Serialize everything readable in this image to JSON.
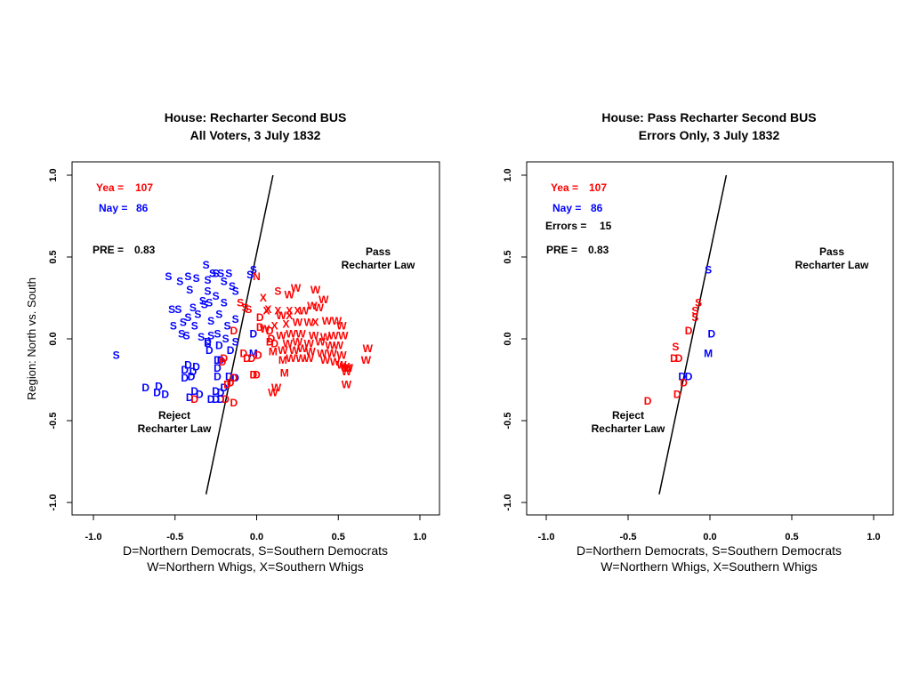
{
  "chart_data": [
    {
      "type": "scatter",
      "title": "House: Recharter Second BUS",
      "subtitle": "All Voters, 3 July 1832",
      "xlabel": "D=Northern Democrats, S=Southern Democrats",
      "xlabel2": "W=Northern Whigs, X=Southern Whigs",
      "ylabel": "Region: North vs. South",
      "xlim": [
        -1.0,
        1.0
      ],
      "ylim": [
        -1.0,
        1.0
      ],
      "xticks": [
        "-1.0",
        "-0.5",
        "0.0",
        "0.5",
        "1.0"
      ],
      "yticks": [
        "-1.0",
        "-0.5",
        "0.0",
        "0.5",
        "1.0"
      ],
      "yea_label": "Yea =",
      "yea_value": "107",
      "nay_label": "Nay =",
      "nay_value": "86",
      "pre_label": "PRE =",
      "pre_value": "0.83",
      "pass_line1": "Pass",
      "pass_line2": "Recharter Law",
      "reject_line1": "Reject",
      "reject_line2": "Recharter Law",
      "cutting_line": [
        [
          -0.31,
          -0.95
        ],
        [
          0.1,
          1.0
        ]
      ],
      "colors": {
        "yea": "#ff0000",
        "nay": "#0000ff"
      },
      "series": [
        {
          "name": "Nay",
          "color": "#0000ff",
          "points": [
            [
              "S",
              -0.31,
              0.45
            ],
            [
              "S",
              -0.27,
              0.4
            ],
            [
              "S",
              -0.25,
              0.4
            ],
            [
              "S",
              -0.22,
              0.4
            ],
            [
              "S",
              -0.17,
              0.4
            ],
            [
              "S",
              -0.04,
              0.39
            ],
            [
              "S",
              -0.02,
              0.42
            ],
            [
              "S",
              -0.54,
              0.38
            ],
            [
              "S",
              -0.42,
              0.38
            ],
            [
              "S",
              -0.37,
              0.37
            ],
            [
              "S",
              -0.3,
              0.36
            ],
            [
              "S",
              -0.47,
              0.35
            ],
            [
              "S",
              -0.2,
              0.35
            ],
            [
              "S",
              -0.15,
              0.32
            ],
            [
              "S",
              -0.13,
              0.29
            ],
            [
              "S",
              -0.3,
              0.29
            ],
            [
              "S",
              -0.41,
              0.3
            ],
            [
              "S",
              -0.25,
              0.26
            ],
            [
              "S",
              -0.33,
              0.23
            ],
            [
              "S",
              -0.52,
              0.18
            ],
            [
              "S",
              -0.48,
              0.18
            ],
            [
              "S",
              -0.39,
              0.19
            ],
            [
              "S",
              -0.32,
              0.21
            ],
            [
              "S",
              -0.29,
              0.22
            ],
            [
              "S",
              -0.2,
              0.22
            ],
            [
              "S",
              -0.42,
              0.13
            ],
            [
              "S",
              -0.36,
              0.15
            ],
            [
              "S",
              -0.23,
              0.15
            ],
            [
              "S",
              -0.13,
              0.12
            ],
            [
              "S",
              -0.51,
              0.08
            ],
            [
              "S",
              -0.45,
              0.1
            ],
            [
              "S",
              -0.38,
              0.08
            ],
            [
              "S",
              -0.28,
              0.11
            ],
            [
              "S",
              -0.18,
              0.08
            ],
            [
              "S",
              -0.46,
              0.03
            ],
            [
              "S",
              -0.43,
              0.02
            ],
            [
              "S",
              -0.34,
              0.01
            ],
            [
              "S",
              -0.28,
              0.02
            ],
            [
              "S",
              -0.24,
              0.03
            ],
            [
              "S",
              -0.19,
              0.0
            ],
            [
              "S",
              -0.13,
              -0.02
            ],
            [
              "S",
              -0.3,
              -0.03
            ],
            [
              "S",
              -0.86,
              -0.1
            ],
            [
              "D",
              -0.3,
              -0.02
            ],
            [
              "D",
              -0.23,
              -0.04
            ],
            [
              "D",
              -0.29,
              -0.07
            ],
            [
              "D",
              -0.02,
              0.03
            ],
            [
              "D",
              -0.16,
              -0.07
            ],
            [
              "D",
              -0.42,
              -0.16
            ],
            [
              "D",
              -0.37,
              -0.17
            ],
            [
              "D",
              -0.24,
              -0.13
            ],
            [
              "D",
              -0.22,
              -0.13
            ],
            [
              "D",
              -0.44,
              -0.19
            ],
            [
              "D",
              -0.39,
              -0.2
            ],
            [
              "D",
              -0.24,
              -0.18
            ],
            [
              "D",
              -0.44,
              -0.24
            ],
            [
              "D",
              -0.4,
              -0.23
            ],
            [
              "D",
              -0.17,
              -0.23
            ],
            [
              "D",
              -0.24,
              -0.23
            ],
            [
              "D",
              -0.13,
              -0.24
            ],
            [
              "D",
              -0.68,
              -0.3
            ],
            [
              "D",
              -0.6,
              -0.29
            ],
            [
              "D",
              -0.61,
              -0.33
            ],
            [
              "D",
              -0.56,
              -0.34
            ],
            [
              "D",
              -0.38,
              -0.32
            ],
            [
              "D",
              -0.41,
              -0.36
            ],
            [
              "D",
              -0.35,
              -0.34
            ],
            [
              "D",
              -0.25,
              -0.32
            ],
            [
              "D",
              -0.22,
              -0.33
            ],
            [
              "D",
              -0.28,
              -0.37
            ],
            [
              "D",
              -0.25,
              -0.37
            ],
            [
              "D",
              -0.22,
              -0.37
            ],
            [
              "D",
              -0.2,
              -0.3
            ],
            [
              "M",
              -0.02,
              -0.09
            ]
          ]
        },
        {
          "name": "Yea",
          "color": "#ff0000",
          "points": [
            [
              "N",
              0.0,
              0.38
            ],
            [
              "X",
              0.04,
              0.25
            ],
            [
              "S",
              0.13,
              0.29
            ],
            [
              "W",
              0.2,
              0.27
            ],
            [
              "W",
              0.24,
              0.31
            ],
            [
              "W",
              0.36,
              0.3
            ],
            [
              "W",
              0.41,
              0.24
            ],
            [
              "S",
              -0.1,
              0.22
            ],
            [
              "S",
              -0.07,
              0.19
            ],
            [
              "S",
              -0.05,
              0.18
            ],
            [
              "X",
              0.07,
              0.18
            ],
            [
              "D",
              0.02,
              0.13
            ],
            [
              "X",
              0.06,
              0.17
            ],
            [
              "X",
              0.13,
              0.17
            ],
            [
              "X",
              0.2,
              0.17
            ],
            [
              "X",
              0.25,
              0.17
            ],
            [
              "W",
              0.15,
              0.14
            ],
            [
              "X",
              0.2,
              0.14
            ],
            [
              "W",
              0.29,
              0.17
            ],
            [
              "W",
              0.34,
              0.2
            ],
            [
              "W",
              0.38,
              0.19
            ],
            [
              "D",
              0.02,
              0.07
            ],
            [
              "W",
              0.05,
              0.06
            ],
            [
              "D",
              0.08,
              0.05
            ],
            [
              "X",
              0.11,
              0.08
            ],
            [
              "X",
              0.18,
              0.09
            ],
            [
              "W",
              0.25,
              0.1
            ],
            [
              "W",
              0.32,
              0.1
            ],
            [
              "X",
              0.36,
              0.1
            ],
            [
              "W",
              0.43,
              0.11
            ],
            [
              "W",
              0.49,
              0.11
            ],
            [
              "W",
              0.52,
              0.08
            ],
            [
              "D",
              -0.14,
              0.05
            ],
            [
              "D",
              0.09,
              0.0
            ],
            [
              "W",
              0.15,
              0.02
            ],
            [
              "W",
              0.21,
              0.03
            ],
            [
              "W",
              0.27,
              0.03
            ],
            [
              "W",
              0.35,
              0.02
            ],
            [
              "W",
              0.42,
              0.01
            ],
            [
              "W",
              0.47,
              0.02
            ],
            [
              "W",
              0.53,
              0.02
            ],
            [
              "D",
              0.08,
              -0.02
            ],
            [
              "D",
              0.11,
              -0.03
            ],
            [
              "W",
              0.19,
              -0.03
            ],
            [
              "W",
              0.25,
              -0.02
            ],
            [
              "W",
              0.32,
              -0.03
            ],
            [
              "W",
              0.39,
              -0.02
            ],
            [
              "W",
              0.45,
              -0.04
            ],
            [
              "W",
              0.5,
              -0.04
            ],
            [
              "W",
              0.68,
              -0.06
            ],
            [
              "D",
              -0.08,
              -0.09
            ],
            [
              "D",
              0.01,
              -0.1
            ],
            [
              "D",
              -0.06,
              -0.12
            ],
            [
              "D",
              -0.03,
              -0.12
            ],
            [
              "M",
              0.1,
              -0.08
            ],
            [
              "W",
              0.16,
              -0.07
            ],
            [
              "W",
              0.23,
              -0.07
            ],
            [
              "W",
              0.28,
              -0.06
            ],
            [
              "W",
              0.33,
              -0.08
            ],
            [
              "W",
              0.4,
              -0.09
            ],
            [
              "W",
              0.46,
              -0.09
            ],
            [
              "W",
              0.52,
              -0.1
            ],
            [
              "W",
              0.67,
              -0.13
            ],
            [
              "M",
              0.16,
              -0.13
            ],
            [
              "W",
              0.21,
              -0.12
            ],
            [
              "W",
              0.27,
              -0.12
            ],
            [
              "W",
              0.32,
              -0.12
            ],
            [
              "W",
              0.42,
              -0.13
            ],
            [
              "W",
              0.48,
              -0.14
            ],
            [
              "W",
              0.52,
              -0.16
            ],
            [
              "W",
              0.54,
              -0.17
            ],
            [
              "D",
              -0.2,
              -0.12
            ],
            [
              "D",
              -0.21,
              -0.14
            ],
            [
              "D",
              -0.02,
              -0.22
            ],
            [
              "D",
              0.0,
              -0.22
            ],
            [
              "M",
              0.17,
              -0.21
            ],
            [
              "W",
              0.55,
              -0.18
            ],
            [
              "W",
              0.55,
              -0.2
            ],
            [
              "W",
              0.56,
              -0.18
            ],
            [
              "D",
              -0.14,
              -0.24
            ],
            [
              "D",
              -0.16,
              -0.27
            ],
            [
              "D",
              -0.18,
              -0.28
            ],
            [
              "W",
              0.12,
              -0.3
            ],
            [
              "W",
              0.1,
              -0.33
            ],
            [
              "W",
              0.55,
              -0.28
            ],
            [
              "D",
              -0.19,
              -0.37
            ],
            [
              "D",
              -0.38,
              -0.37
            ],
            [
              "D",
              -0.14,
              -0.39
            ]
          ]
        }
      ]
    },
    {
      "type": "scatter",
      "title": "House: Pass Recharter Second BUS",
      "subtitle": "Errors Only, 3 July 1832",
      "xlabel": "D=Northern Democrats, S=Southern Democrats",
      "xlabel2": "W=Northern Whigs, X=Southern Whigs",
      "ylabel": "",
      "xlim": [
        -1.0,
        1.0
      ],
      "ylim": [
        -1.0,
        1.0
      ],
      "xticks": [
        "-1.0",
        "-0.5",
        "0.0",
        "0.5",
        "1.0"
      ],
      "yticks": [
        "-1.0",
        "-0.5",
        "0.0",
        "0.5",
        "1.0"
      ],
      "yea_label": "Yea =",
      "yea_value": "107",
      "nay_label": "Nay =",
      "nay_value": "86",
      "errors_label": "Errors =",
      "errors_value": "15",
      "pre_label": "PRE =",
      "pre_value": "0.83",
      "pass_line1": "Pass",
      "pass_line2": "Recharter Law",
      "reject_line1": "Reject",
      "reject_line2": "Recharter Law",
      "cutting_line": [
        [
          -0.31,
          -0.95
        ],
        [
          0.1,
          1.0
        ]
      ],
      "colors": {
        "yea": "#ff0000",
        "nay": "#0000ff"
      },
      "series": [
        {
          "name": "Nay",
          "color": "#0000ff",
          "points": [
            [
              "S",
              -0.01,
              0.42
            ],
            [
              "D",
              0.01,
              0.03
            ],
            [
              "M",
              -0.01,
              -0.09
            ],
            [
              "D",
              -0.17,
              -0.23
            ],
            [
              "D",
              -0.13,
              -0.23
            ]
          ]
        },
        {
          "name": "Yea",
          "color": "#ff0000",
          "points": [
            [
              "S",
              -0.07,
              0.22
            ],
            [
              "S",
              -0.09,
              0.17
            ],
            [
              "S",
              -0.09,
              0.13
            ],
            [
              "D",
              -0.13,
              0.05
            ],
            [
              "S",
              -0.21,
              -0.05
            ],
            [
              "D",
              -0.22,
              -0.12
            ],
            [
              "D",
              -0.19,
              -0.12
            ],
            [
              "D",
              -0.16,
              -0.27
            ],
            [
              "D",
              -0.2,
              -0.34
            ],
            [
              "D",
              -0.38,
              -0.38
            ]
          ]
        }
      ]
    }
  ]
}
